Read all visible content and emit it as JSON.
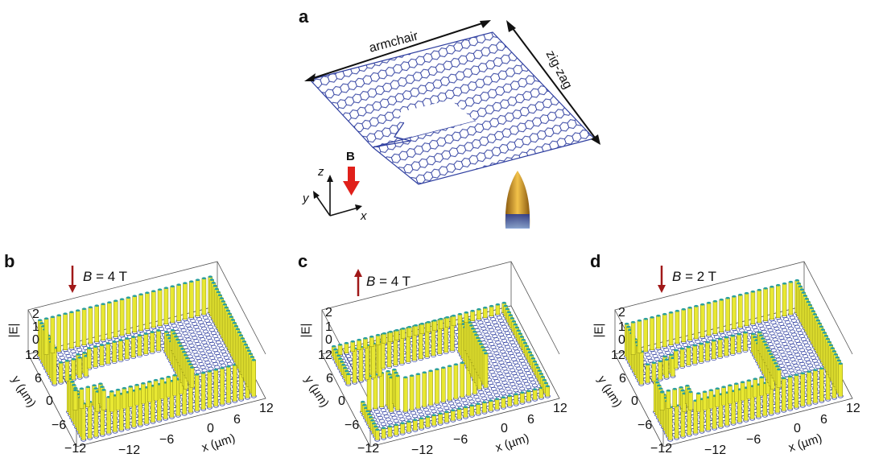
{
  "panels": {
    "a": {
      "letter": "a",
      "edge_armchair": "armchair",
      "edge_zigzag": "zig-zag",
      "field_label": "B",
      "axis_x": "x",
      "axis_y": "y",
      "axis_z": "z"
    },
    "b": {
      "letter": "b",
      "field_prefix": "B",
      "field_value": " = 4 T",
      "field_direction": "down",
      "z_label": "|E|",
      "z_ticks": [
        "2",
        "1",
        "0"
      ],
      "y_label": "y (µm)",
      "y_ticks": [
        "12",
        "6",
        "0",
        "−6",
        "−12"
      ],
      "x_label": "x (µm)",
      "x_ticks": [
        "−12",
        "−6",
        "0",
        "6",
        "12"
      ]
    },
    "c": {
      "letter": "c",
      "field_prefix": "B",
      "field_value": " = 4 T",
      "field_direction": "up",
      "z_label": "|E|",
      "z_ticks": [
        "2",
        "1",
        "0"
      ],
      "y_label": "y (µm)",
      "y_ticks": [
        "12",
        "6",
        "0",
        "−6",
        "−12"
      ],
      "x_label": "x (µm)",
      "x_ticks": [
        "−12",
        "−6",
        "0",
        "6",
        "12"
      ]
    },
    "d": {
      "letter": "d",
      "field_prefix": "B",
      "field_value": " = 2 T",
      "field_direction": "down",
      "z_label": "|E|",
      "z_ticks": [
        "2",
        "1",
        "0"
      ],
      "y_label": "y (µm)",
      "y_ticks": [
        "12",
        "6",
        "0",
        "−6",
        "−12"
      ],
      "x_label": "x (µm)",
      "x_ticks": [
        "−12",
        "−6",
        "0",
        "6",
        "12"
      ]
    }
  },
  "colors": {
    "lattice": "#2f3fa0",
    "arrow_red": "#e0201a",
    "field_arrow_dark": "#a01818",
    "pillar_yellow": "#e8e832",
    "pillar_teal": "#2aa0a0",
    "tip_gold": "#d9a22a"
  }
}
